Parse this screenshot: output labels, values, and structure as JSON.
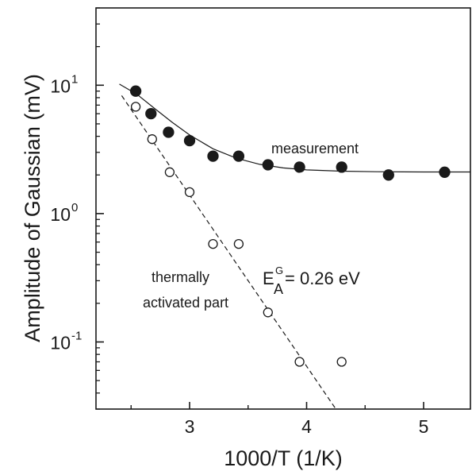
{
  "chart_data": {
    "type": "scatter",
    "title": "",
    "xlabel": "1000/T (1/K)",
    "ylabel": "Amplitude of Gaussian (mV)",
    "xlim": [
      2.2,
      5.4
    ],
    "ylim": [
      0.03,
      40
    ],
    "yscale": "log",
    "grid": false,
    "x_ticks": [
      {
        "value": 3,
        "label": "3"
      },
      {
        "value": 4,
        "label": "4"
      },
      {
        "value": 5,
        "label": "5"
      }
    ],
    "y_ticks": [
      {
        "value": 0.1,
        "base": "10",
        "exp": "-1"
      },
      {
        "value": 1,
        "base": "10",
        "exp": "0"
      },
      {
        "value": 10,
        "base": "10",
        "exp": "1"
      }
    ],
    "series": [
      {
        "marker": "filled-circle",
        "x": [
          2.54,
          2.67,
          2.82,
          3.0,
          3.2,
          3.42,
          3.67,
          3.94,
          4.3,
          4.7,
          5.18
        ],
        "y": [
          9.0,
          6.0,
          4.3,
          3.7,
          2.8,
          2.8,
          2.4,
          2.3,
          2.3,
          2.0,
          2.1
        ]
      },
      {
        "marker": "open-circle",
        "x": [
          2.54,
          2.68,
          2.83,
          3.0,
          3.2,
          3.42,
          3.67,
          3.94,
          4.3
        ],
        "y": [
          6.8,
          3.8,
          2.1,
          1.47,
          0.58,
          0.58,
          0.17,
          0.07,
          0.07
        ]
      }
    ],
    "fit_lines": [
      {
        "style": "solid",
        "x": [
          2.4,
          2.55,
          2.7,
          2.85,
          3.0,
          3.2,
          3.4,
          3.6,
          3.8,
          4.0,
          4.3,
          4.6,
          5.0,
          5.4
        ],
        "y": [
          10.2,
          8.5,
          6.6,
          5.15,
          4.1,
          3.2,
          2.7,
          2.42,
          2.27,
          2.19,
          2.14,
          2.12,
          2.11,
          2.11
        ]
      },
      {
        "style": "dashed",
        "x": [
          2.42,
          4.25
        ],
        "y": [
          8.3,
          0.03
        ]
      }
    ],
    "annotations": {
      "measurement": "measurement",
      "thermal_line1": "thermally",
      "thermal_line2": "activated part",
      "ea_symbol": "E",
      "ea_super": "G",
      "ea_sub": "A",
      "ea_value": " = 0.26 eV"
    }
  }
}
